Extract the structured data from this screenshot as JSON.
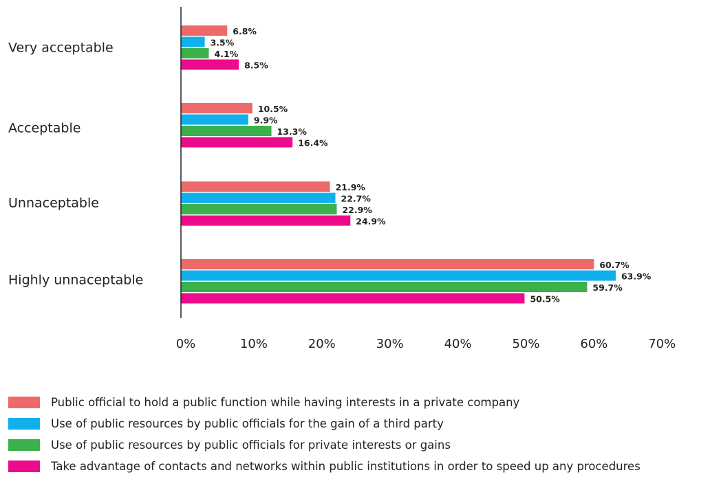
{
  "chart_data": {
    "type": "bar",
    "orientation": "horizontal",
    "categories": [
      "Very acceptable",
      "Acceptable",
      "Unnaceptable",
      "Highly unnaceptable"
    ],
    "series": [
      {
        "name": "Public official to hold a public function while having interests in a private company",
        "color": "#ee6969",
        "values": [
          6.8,
          10.5,
          21.9,
          60.7
        ],
        "labels": [
          "6.8%",
          "10.5%",
          "21.9%",
          "60.7%"
        ]
      },
      {
        "name": "Use of public resources by public officials for the gain of a third party",
        "color": "#0fb0ec",
        "values": [
          3.5,
          9.9,
          22.7,
          63.9
        ],
        "labels": [
          "3.5%",
          "9.9%",
          "22.7%",
          "63.9%"
        ]
      },
      {
        "name": "Use of public resources by public officials for private interests or gains",
        "color": "#3cb04a",
        "values": [
          4.1,
          13.3,
          22.9,
          59.7
        ],
        "labels": [
          "4.1%",
          "13.3%",
          "22.9%",
          "59.7%"
        ]
      },
      {
        "name": "Take advantage of contacts and networks within public institutions in order to speed up any procedures",
        "color": "#ec0b8c",
        "values": [
          8.5,
          16.4,
          24.9,
          50.5
        ],
        "labels": [
          "8.5%",
          "16.4%",
          "24.9%",
          "50.5%"
        ]
      }
    ],
    "xlim": [
      0,
      70
    ],
    "xticks": [
      "0%",
      "10%",
      "20%",
      "30%",
      "40%",
      "50%",
      "60%",
      "70%"
    ],
    "grid": false,
    "legend_position": "bottom"
  }
}
